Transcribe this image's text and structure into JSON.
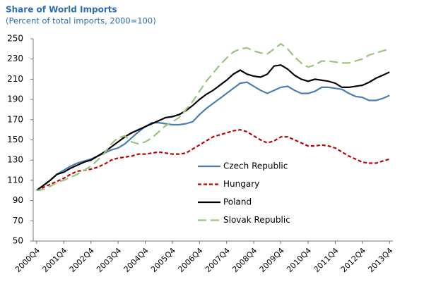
{
  "chart_data": {
    "type": "line",
    "title": "Share of World Imports",
    "subtitle": "(Percent of total imports, 2000=100)",
    "categories": [
      "2000Q4",
      null,
      null,
      null,
      "2001Q4",
      null,
      null,
      null,
      "2002Q4",
      null,
      null,
      null,
      "2003Q4",
      null,
      null,
      null,
      "2004Q4",
      null,
      null,
      null,
      "2005Q4",
      null,
      null,
      null,
      "2006Q4",
      null,
      null,
      null,
      "2007Q4",
      null,
      null,
      null,
      "2008Q4",
      null,
      null,
      null,
      "2009Q4",
      null,
      null,
      null,
      "2010Q4",
      null,
      null,
      null,
      "2011Q4",
      null,
      null,
      null,
      "2012Q4",
      null,
      null,
      null,
      "2013Q4"
    ],
    "series": [
      {
        "name": "Czech Republic",
        "color": "#4a7eb5",
        "dash": "solid",
        "values": [
          100,
          105,
          110,
          116,
          120,
          124,
          127,
          129,
          131,
          134,
          137,
          140,
          142,
          146,
          152,
          158,
          163,
          167,
          167,
          166,
          165,
          165,
          166,
          168,
          175,
          181,
          186,
          191,
          196,
          201,
          206,
          207,
          203,
          199,
          196,
          199,
          202,
          203,
          199,
          196,
          196,
          198,
          202,
          202,
          201,
          200,
          196,
          193,
          192,
          189,
          189,
          191,
          194
        ]
      },
      {
        "name": "Hungary",
        "color": "#c00000",
        "dash": "short",
        "values": [
          100,
          103,
          106,
          109,
          112,
          116,
          119,
          120,
          121,
          123,
          126,
          130,
          132,
          133,
          134,
          136,
          136,
          137,
          138,
          137,
          136,
          136,
          137,
          141,
          145,
          149,
          153,
          155,
          157,
          159,
          160,
          158,
          154,
          150,
          147,
          149,
          153,
          153,
          150,
          147,
          144,
          144,
          145,
          144,
          142,
          138,
          134,
          131,
          128,
          127,
          127,
          129,
          131
        ]
      },
      {
        "name": "Poland",
        "color": "#000000",
        "dash": "solid",
        "values": [
          100,
          105,
          110,
          116,
          118,
          122,
          125,
          128,
          130,
          134,
          138,
          143,
          148,
          153,
          157,
          160,
          163,
          166,
          169,
          172,
          173,
          175,
          179,
          184,
          190,
          195,
          199,
          204,
          209,
          215,
          219,
          215,
          213,
          212,
          215,
          223,
          224,
          220,
          214,
          210,
          208,
          210,
          209,
          208,
          206,
          202,
          202,
          203,
          204,
          207,
          211,
          214,
          217
        ]
      },
      {
        "name": "Slovak Republic",
        "color": "#9bc47f",
        "dash": "long",
        "values": [
          100,
          101,
          104,
          108,
          110,
          113,
          116,
          120,
          124,
          130,
          137,
          146,
          152,
          154,
          148,
          146,
          148,
          152,
          158,
          164,
          168,
          172,
          180,
          188,
          198,
          208,
          216,
          224,
          231,
          237,
          240,
          241,
          238,
          236,
          235,
          240,
          245,
          240,
          232,
          226,
          222,
          224,
          228,
          228,
          227,
          226,
          226,
          228,
          230,
          234,
          236,
          238,
          240
        ]
      }
    ],
    "ylim": [
      50,
      250
    ],
    "yticks": [
      50,
      70,
      90,
      110,
      130,
      150,
      170,
      190,
      210,
      230,
      250
    ],
    "grid": false,
    "legend": "center"
  }
}
